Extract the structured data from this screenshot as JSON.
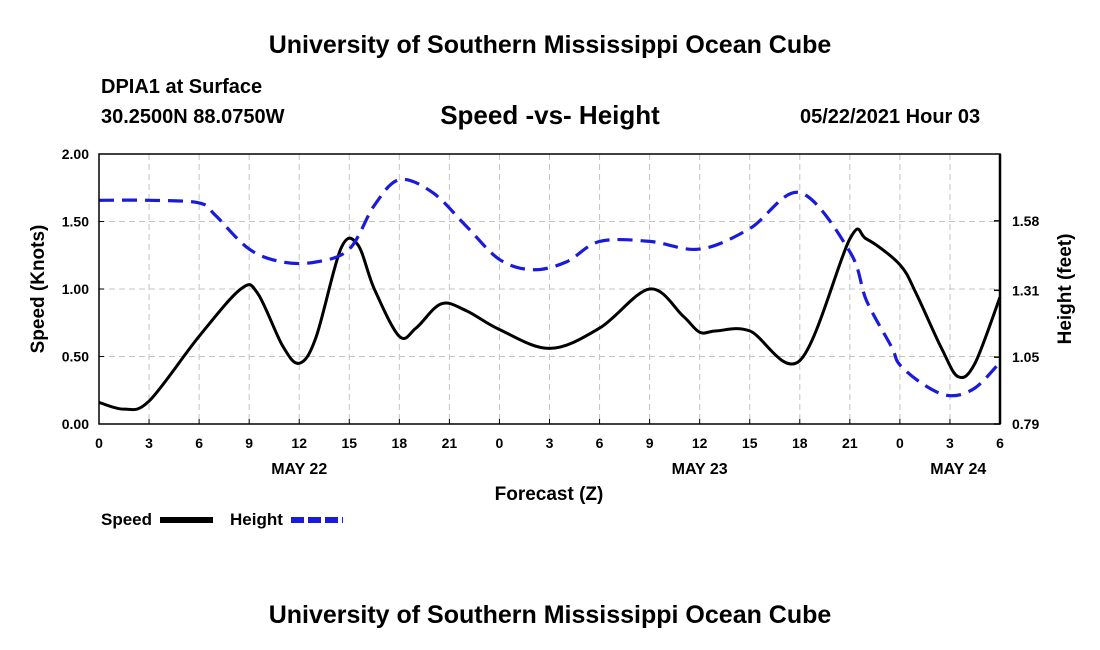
{
  "header": {
    "top_title": "University of Southern Mississippi Ocean Cube",
    "station": "DPIA1 at Surface",
    "coords": "30.2500N  88.0750W",
    "date": "05/22/2021 Hour 03",
    "bottom_title": "University of Southern Mississippi Ocean Cube"
  },
  "chart_data": {
    "type": "line",
    "title": "Speed -vs- Height",
    "xlabel": "Forecast (Z)",
    "ylabel": "Speed (Knots)",
    "y2label": "Height (feet)",
    "x_unit": "hours from 00Z May 22",
    "xlim": [
      0,
      54
    ],
    "ylim": [
      0,
      2.0
    ],
    "y2lim": [
      0.79,
      1.84
    ],
    "x_tick_labels": [
      "0",
      "3",
      "6",
      "9",
      "12",
      "15",
      "18",
      "21",
      "0",
      "3",
      "6",
      "9",
      "12",
      "15",
      "18",
      "21",
      "0",
      "3",
      "6"
    ],
    "date_labels": [
      {
        "label": "MAY 22",
        "hour": 12
      },
      {
        "label": "MAY 23",
        "hour": 36
      },
      {
        "label": "MAY 24",
        "hour": 51.5
      }
    ],
    "y_ticks": [
      "0.00",
      "0.50",
      "1.00",
      "1.50",
      "2.00"
    ],
    "y2_ticks": [
      "0.79",
      "1.05",
      "1.31",
      "1.58"
    ],
    "grid": true,
    "legend": [
      {
        "name": "Speed",
        "color": "#000000",
        "style": "solid"
      },
      {
        "name": "Height",
        "color": "#1a1adc",
        "style": "dashed"
      }
    ],
    "series": [
      {
        "name": "Speed",
        "axis": "left",
        "color": "#000000",
        "x": [
          0,
          1.5,
          3,
          6,
          8.5,
          9.5,
          11,
          12,
          13,
          14.5,
          15.5,
          16.5,
          18,
          19,
          20.5,
          22,
          24,
          27,
          30,
          33,
          35,
          36,
          37,
          39,
          42,
          45,
          46,
          48,
          49,
          50.5,
          51.5,
          52.5,
          54
        ],
        "values": [
          0.16,
          0.11,
          0.17,
          0.65,
          1.0,
          0.97,
          0.58,
          0.45,
          0.64,
          1.3,
          1.33,
          1.0,
          0.65,
          0.71,
          0.89,
          0.84,
          0.7,
          0.56,
          0.71,
          1.0,
          0.8,
          0.68,
          0.69,
          0.69,
          0.47,
          1.37,
          1.37,
          1.18,
          0.96,
          0.56,
          0.35,
          0.45,
          0.94
        ]
      },
      {
        "name": "Height",
        "axis": "right",
        "color": "#1a1adc",
        "x": [
          0,
          3,
          6,
          7,
          9,
          11,
          13,
          15,
          16.5,
          18,
          20,
          22,
          24,
          26,
          28,
          30,
          33,
          36,
          39,
          42,
          45,
          46,
          47.5,
          48,
          49.5,
          51,
          52.5,
          54
        ],
        "values": [
          1.66,
          1.66,
          1.65,
          1.6,
          1.47,
          1.42,
          1.42,
          1.47,
          1.64,
          1.74,
          1.69,
          1.56,
          1.43,
          1.39,
          1.42,
          1.5,
          1.5,
          1.47,
          1.55,
          1.69,
          1.46,
          1.27,
          1.09,
          1.02,
          0.94,
          0.9,
          0.93,
          1.03
        ]
      }
    ]
  }
}
